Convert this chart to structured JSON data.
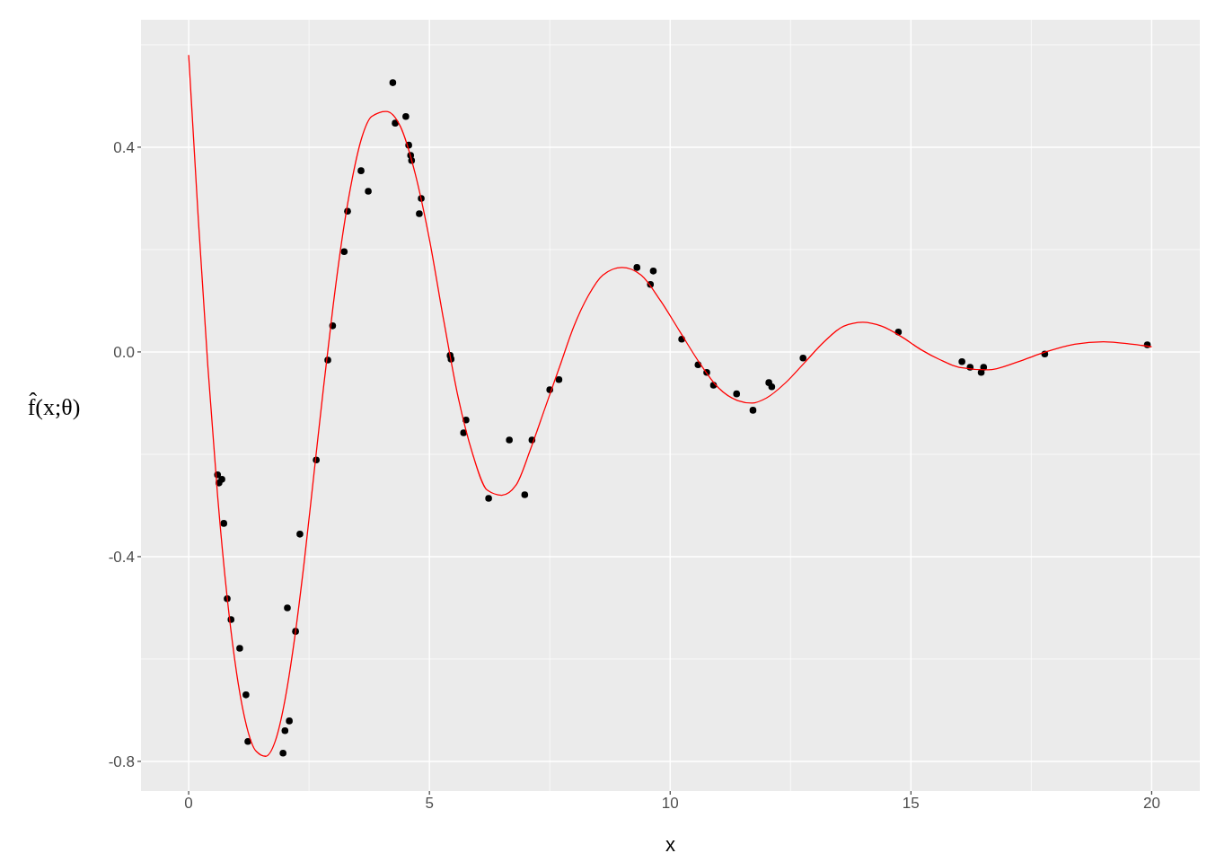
{
  "chart_data": {
    "type": "scatter",
    "xlabel": "x",
    "ylabel": "f̂(x;θ)",
    "xlim": [
      -0.99,
      21.0
    ],
    "ylim": [
      -0.858,
      0.649
    ],
    "xticks": [
      0,
      5,
      10,
      15,
      20
    ],
    "yticks": [
      {
        "value": -0.8,
        "label": "-0.8"
      },
      {
        "value": -0.4,
        "label": "-0.4"
      },
      {
        "value": 0,
        "label": "0.0"
      },
      {
        "value": 0.4,
        "label": "0.4"
      }
    ],
    "grid": true,
    "series": [
      {
        "color": "#000000",
        "marker": "circle",
        "x": [
          0.6,
          0.63,
          0.69,
          0.73,
          0.8,
          0.88,
          1.06,
          1.19,
          1.23,
          1.96,
          2.0,
          2.09,
          2.05,
          2.22,
          2.31,
          2.65,
          2.89,
          2.99,
          3.23,
          3.3,
          3.58,
          3.73,
          4.24,
          4.29,
          4.51,
          4.57,
          4.61,
          4.63,
          4.83,
          4.79,
          5.43,
          5.45,
          5.71,
          5.76,
          6.23,
          6.66,
          6.98,
          7.13,
          7.5,
          7.69,
          9.31,
          9.59,
          9.65,
          10.24,
          10.58,
          10.76,
          10.9,
          11.38,
          11.72,
          12.05,
          12.11,
          12.76,
          14.74,
          16.06,
          16.23,
          16.46,
          16.51,
          17.78,
          19.91
        ],
        "values": [
          -0.24,
          -0.256,
          -0.249,
          -0.335,
          -0.482,
          -0.523,
          -0.579,
          -0.67,
          -0.761,
          -0.784,
          -0.74,
          -0.721,
          -0.5,
          -0.546,
          -0.356,
          -0.211,
          -0.016,
          0.051,
          0.196,
          0.275,
          0.354,
          0.314,
          0.526,
          0.447,
          0.46,
          0.404,
          0.384,
          0.374,
          0.3,
          0.27,
          -0.007,
          -0.014,
          -0.158,
          -0.133,
          -0.286,
          -0.172,
          -0.279,
          -0.172,
          -0.074,
          -0.054,
          0.165,
          0.132,
          0.158,
          0.025,
          -0.025,
          -0.04,
          -0.065,
          -0.082,
          -0.114,
          -0.06,
          -0.068,
          -0.012,
          0.039,
          -0.019,
          -0.03,
          -0.04,
          -0.03,
          -0.004,
          0.014
        ]
      },
      {
        "type": "line",
        "color": "#ff0000",
        "x": [
          0,
          0.2,
          0.4,
          0.6,
          0.8,
          1.0,
          1.2,
          1.4,
          1.6,
          1.8,
          2.0,
          2.2,
          2.4,
          2.6,
          2.8,
          3.0,
          3.2,
          3.4,
          3.6,
          3.8,
          4.1,
          4.4,
          4.7,
          5.0,
          5.3,
          5.6,
          5.9,
          6.2,
          6.5,
          6.8,
          7.1,
          7.4,
          7.7,
          8.0,
          8.3,
          8.6,
          9.0,
          9.4,
          9.8,
          10.2,
          10.6,
          11.0,
          11.4,
          11.7,
          12.0,
          12.4,
          12.8,
          13.2,
          13.6,
          14.0,
          14.4,
          14.8,
          15.2,
          15.6,
          16.0,
          16.6,
          17.2,
          17.8,
          18.4,
          19.0,
          19.6,
          20.0
        ],
        "values": [
          0.58,
          0.26,
          -0.03,
          -0.28,
          -0.48,
          -0.63,
          -0.73,
          -0.78,
          -0.79,
          -0.76,
          -0.68,
          -0.56,
          -0.41,
          -0.24,
          -0.07,
          0.09,
          0.23,
          0.34,
          0.42,
          0.46,
          0.47,
          0.44,
          0.35,
          0.22,
          0.06,
          -0.09,
          -0.2,
          -0.27,
          -0.28,
          -0.26,
          -0.19,
          -0.11,
          -0.03,
          0.05,
          0.11,
          0.15,
          0.165,
          0.15,
          0.1,
          0.04,
          -0.02,
          -0.07,
          -0.095,
          -0.1,
          -0.09,
          -0.06,
          -0.02,
          0.02,
          0.05,
          0.058,
          0.05,
          0.03,
          0.005,
          -0.015,
          -0.03,
          -0.035,
          -0.02,
          0.0,
          0.015,
          0.02,
          0.015,
          0.01
        ]
      }
    ]
  }
}
